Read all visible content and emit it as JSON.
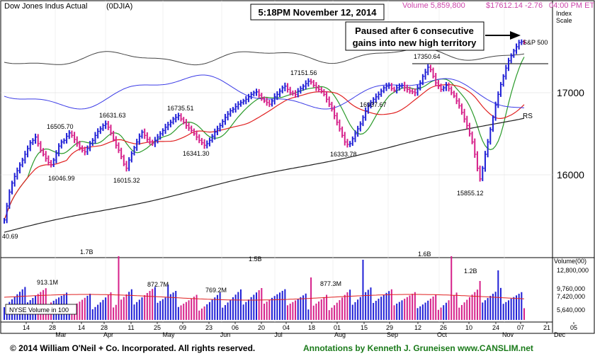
{
  "header": {
    "title": "Dow Jones Indus Actual",
    "symbol": "(0DJIA)",
    "volume_label": "Volume 5,859,800",
    "price_change": "$17612.14 -2.76",
    "time_label": "04:00 PM ET"
  },
  "timestamp_box": "5:18PM November 12, 2014",
  "annotation_box": {
    "line1": "Paused after 6 consecutive",
    "line2": "gains into new high territory"
  },
  "axis": {
    "index_label_1": "Index",
    "index_label_2": "Scale",
    "sp500_label": "S&P 500",
    "rs_label": "RS",
    "y_ticks": [
      "17000",
      "16000"
    ],
    "volume_unit": "Volume(00)",
    "volume_ticks": [
      "12,800,000",
      "9,760,000",
      "7,420,000",
      "5,640,000"
    ],
    "x_days": [
      "14",
      "28",
      "14",
      "28",
      "11",
      "25",
      "09",
      "23",
      "06",
      "20",
      "04",
      "18",
      "01",
      "15",
      "29",
      "12",
      "26",
      "10",
      "24",
      "07",
      "21",
      "05"
    ],
    "x_months": [
      "Mar",
      "Apr",
      "May",
      "Jun",
      "Jul",
      "Aug",
      "Sep",
      "Oct",
      "Nov",
      "Dec"
    ]
  },
  "nyse_volume_label": "NYSE Volume in 100",
  "footer": {
    "copyright": "© 2014 William O'Neil + Co. Incorporated. All rights reserved.",
    "annotations": "Annotations by Kenneth J. Gruneisen www.CANSLIM.net"
  },
  "colors": {
    "up_bar": "#1f1fd6",
    "down_bar": "#d6208a",
    "ma_red": "#e02020",
    "ma_green": "#2a9a2a",
    "ma_black": "#202020",
    "rs_line": "#3b3be6",
    "volume_text": "#cc44aa",
    "footer_green": "#1a7a1a"
  },
  "chart_data": {
    "type": "ohlc",
    "price_labels": [
      {
        "text": "16505.70",
        "value": 16505.7
      },
      {
        "text": "16631.63",
        "value": 16631.63
      },
      {
        "text": "16735.51",
        "value": 16735.51
      },
      {
        "text": "17151.56",
        "value": 17151.56
      },
      {
        "text": "17350.64",
        "value": 17350.64
      },
      {
        "text": "16937.67",
        "value": 16937.67
      },
      {
        "text": "16046.99",
        "value": 16046.99
      },
      {
        "text": "16015.32",
        "value": 16015.32
      },
      {
        "text": "16341.30",
        "value": 16341.3
      },
      {
        "text": "16333.78",
        "value": 16333.78
      },
      {
        "text": "15855.12",
        "value": 15855.12
      },
      {
        "text": "40.69",
        "value": null
      }
    ],
    "volume_labels": [
      {
        "text": "1.7B"
      },
      {
        "text": "913.1M"
      },
      {
        "text": "872.7M"
      },
      {
        "text": "769.2M"
      },
      {
        "text": "1.5B"
      },
      {
        "text": "877.3M"
      },
      {
        "text": "1.6B"
      },
      {
        "text": "1.2B"
      }
    ],
    "price_close_series": [
      15450,
      15620,
      15790,
      15900,
      15980,
      16050,
      16120,
      16180,
      16250,
      16320,
      16390,
      16420,
      16460,
      16380,
      16300,
      16250,
      16200,
      16150,
      16120,
      16180,
      16260,
      16350,
      16400,
      16420,
      16470,
      16510,
      16480,
      16430,
      16380,
      16330,
      16300,
      16280,
      16320,
      16380,
      16420,
      16480,
      16530,
      16560,
      16600,
      16620,
      16580,
      16510,
      16430,
      16360,
      16300,
      16220,
      16130,
      16080,
      16180,
      16260,
      16330,
      16400,
      16470,
      16520,
      16480,
      16430,
      16400,
      16380,
      16420,
      16460,
      16500,
      16540,
      16580,
      16610,
      16640,
      16680,
      16700,
      16720,
      16680,
      16640,
      16600,
      16570,
      16540,
      16500,
      16460,
      16420,
      16390,
      16360,
      16380,
      16420,
      16470,
      16520,
      16560,
      16600,
      16650,
      16700,
      16740,
      16780,
      16800,
      16830,
      16860,
      16880,
      16900,
      16920,
      16950,
      16980,
      17000,
      17010,
      16970,
      16930,
      16900,
      16880,
      16860,
      16900,
      16950,
      16980,
      17020,
      17060,
      17080,
      17040,
      17000,
      16990,
      16980,
      17020,
      17050,
      17080,
      17110,
      17140,
      17130,
      17090,
      17060,
      17040,
      17020,
      16980,
      16920,
      16860,
      16800,
      16720,
      16640,
      16560,
      16480,
      16400,
      16370,
      16380,
      16440,
      16500,
      16560,
      16620,
      16700,
      16780,
      16840,
      16880,
      16920,
      16950,
      16980,
      17020,
      17060,
      17080,
      17090,
      17050,
      17030,
      17060,
      17080,
      17090,
      17060,
      17040,
      17020,
      17010,
      17000,
      17060,
      17120,
      17200,
      17250,
      17310,
      17280,
      17200,
      17120,
      17080,
      17040,
      17060,
      17090,
      17050,
      17000,
      16960,
      16900,
      16840,
      16760,
      16680,
      16600,
      16500,
      16400,
      16250,
      16080,
      15950,
      16080,
      16250,
      16400,
      16550,
      16700,
      16850,
      16980,
      17100,
      17200,
      17300,
      17390,
      17450,
      17510,
      17560,
      17610,
      17620,
      17612
    ]
  }
}
